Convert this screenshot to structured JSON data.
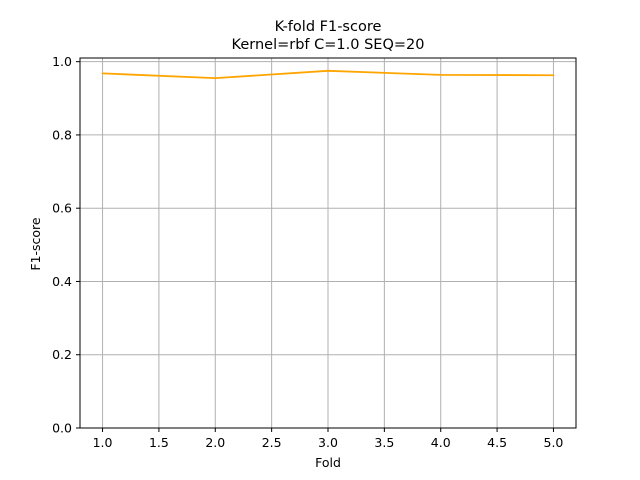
{
  "chart_data": {
    "type": "line",
    "title": "K-fold F1-score",
    "subtitle": "Kernel=rbf C=1.0 SEQ=20",
    "xlabel": "Fold",
    "ylabel": "F1-score",
    "xlim": [
      0.8,
      5.2
    ],
    "ylim": [
      0.0,
      1.01
    ],
    "xticks": [
      "1.0",
      "1.5",
      "2.0",
      "2.5",
      "3.0",
      "3.5",
      "4.0",
      "4.5",
      "5.0"
    ],
    "yticks": [
      "0.0",
      "0.2",
      "0.4",
      "0.6",
      "0.8",
      "1.0"
    ],
    "grid": true,
    "series": [
      {
        "color": "#ffa500",
        "x": [
          1,
          2,
          3,
          4,
          5
        ],
        "y": [
          0.968,
          0.955,
          0.975,
          0.964,
          0.963
        ]
      }
    ]
  }
}
